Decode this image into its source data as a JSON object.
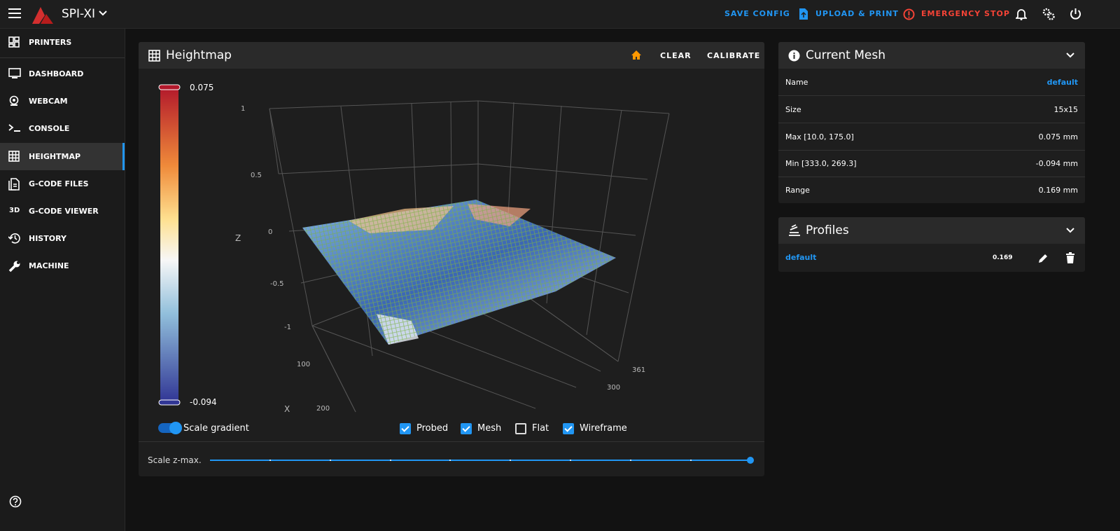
{
  "app": {
    "title": "SPI-XI",
    "actions": [
      "SAVE CONFIG",
      "UPLOAD & PRINT",
      "EMERGENCY STOP"
    ]
  },
  "nav": {
    "items": [
      {
        "label": "PRINTERS"
      },
      {
        "label": "DASHBOARD"
      },
      {
        "label": "WEBCAM"
      },
      {
        "label": "CONSOLE"
      },
      {
        "label": "HEIGHTMAP"
      },
      {
        "label": "G-CODE FILES"
      },
      {
        "icon": "3D",
        "label": "G-CODE VIEWER"
      },
      {
        "label": "HISTORY"
      },
      {
        "label": "MACHINE"
      }
    ]
  },
  "heightmap": {
    "title": "Heightmap",
    "actions": [
      "CLEAR",
      "CALIBRATE"
    ],
    "gradient_max": 0.075,
    "gradient_min": -0.094,
    "z_label": "Z",
    "x_label": "X",
    "z_ticks": [
      1,
      0.5,
      0,
      -0.5,
      -1
    ],
    "x_ticks": [
      100,
      200
    ],
    "y_ticks": [
      361,
      300
    ],
    "scale_gradient": "Scale gradient",
    "options": [
      {
        "label": "Probed",
        "checked": true
      },
      {
        "label": "Mesh",
        "checked": true
      },
      {
        "label": "Flat",
        "checked": false
      },
      {
        "label": "Wireframe",
        "checked": true
      }
    ],
    "slider_label": "Scale z-max."
  },
  "mesh": {
    "title": "Current Mesh",
    "rows": [
      [
        "Name",
        "default"
      ],
      [
        "Size",
        "15x15"
      ],
      [
        "Max [10.0, 175.0]",
        "0.075 mm"
      ],
      [
        "Min [333.0, 269.3]",
        "-0.094 mm"
      ],
      [
        "Range",
        "0.169 mm"
      ]
    ]
  },
  "profiles": {
    "title": "Profiles",
    "rows": [
      [
        "default",
        "0.169"
      ]
    ]
  }
}
